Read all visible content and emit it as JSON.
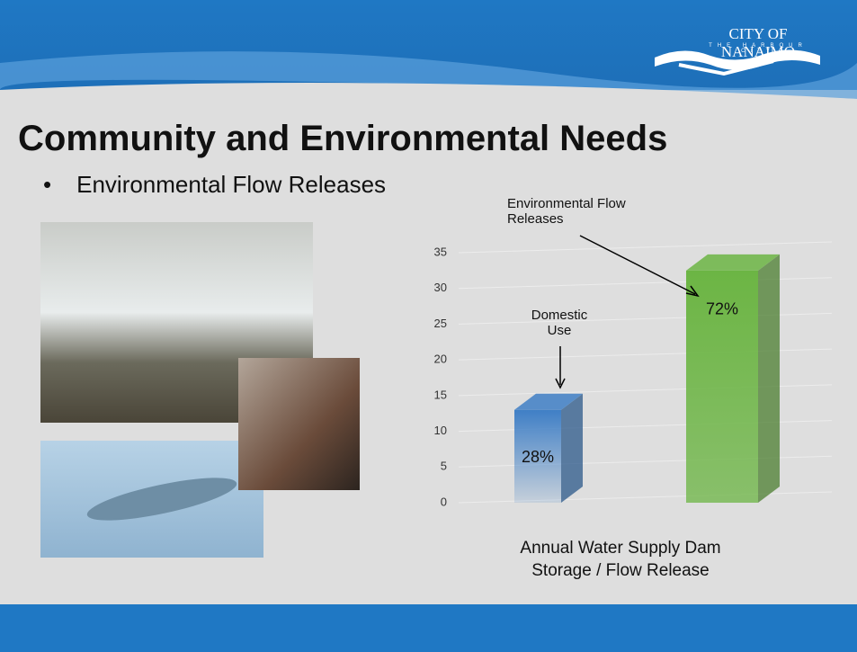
{
  "logo": {
    "name": "CITY OF NANAIMO",
    "tagline": "THE HARBOUR CITY"
  },
  "slide": {
    "title": "Community and Environmental Needs",
    "bullet": "Environmental Flow Releases"
  },
  "chart_data": {
    "type": "bar3d",
    "categories": [
      null,
      null
    ],
    "values": [
      13,
      32.5
    ],
    "share_labels": [
      "28%",
      "72%"
    ],
    "colors": [
      "#3f7fc6",
      "#6cb544"
    ],
    "ylim": [
      0,
      35
    ],
    "yticks": [
      0,
      5,
      10,
      15,
      20,
      25,
      30,
      35
    ],
    "grid": true,
    "xlabel": "Annual Water Supply Dam Storage / Flow Release",
    "annotations": [
      "Domestic Use",
      "Environmental Flow Releases"
    ]
  }
}
